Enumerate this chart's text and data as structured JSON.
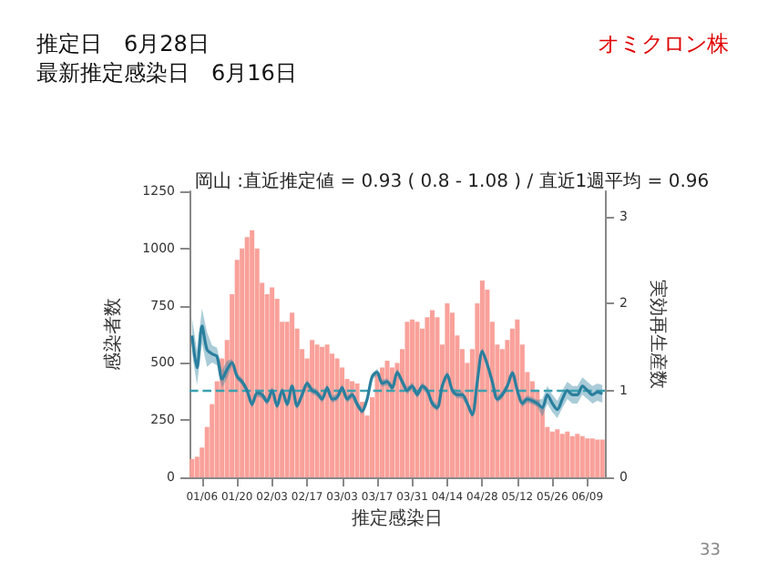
{
  "chart_data": {
    "type": "bar",
    "title": "岡山 :直近推定値 = 0.93 ( 0.8 - 1.08 ) / 直近1週平均 = 0.96",
    "annotations": [
      "推定日　6月28日",
      "最新推定感染日　6月16日",
      "オミクロン株",
      "33"
    ],
    "xlabel": "推定感染日",
    "ylabel": "感染者数",
    "y2label": "実効再生産数",
    "categories": [
      null,
      null,
      "01/06",
      null,
      null,
      null,
      null,
      null,
      null,
      "01/20",
      null,
      null,
      null,
      null,
      null,
      null,
      "02/03",
      null,
      null,
      null,
      null,
      null,
      null,
      "02/17",
      null,
      null,
      null,
      null,
      null,
      null,
      "03/03",
      null,
      null,
      null,
      null,
      null,
      null,
      "03/17",
      null,
      null,
      null,
      null,
      null,
      null,
      "03/31",
      null,
      null,
      null,
      null,
      null,
      null,
      "04/14",
      null,
      null,
      null,
      null,
      null,
      null,
      "04/28",
      null,
      null,
      null,
      null,
      null,
      null,
      "05/12",
      null,
      null,
      null,
      null,
      null,
      null,
      "05/26",
      null,
      null,
      null,
      null,
      null,
      null,
      "06/09",
      null,
      null,
      null
    ],
    "series": [
      {
        "color": "#f9a19a",
        "values": [
          80,
          90,
          130,
          220,
          320,
          420,
          520,
          600,
          800,
          950,
          1000,
          1050,
          1080,
          1000,
          850,
          800,
          830,
          780,
          680,
          680,
          720,
          650,
          560,
          520,
          600,
          580,
          570,
          580,
          540,
          520,
          480,
          430,
          420,
          410,
          330,
          270,
          350,
          450,
          480,
          510,
          480,
          500,
          560,
          680,
          690,
          680,
          650,
          700,
          730,
          700,
          580,
          760,
          720,
          620,
          560,
          500,
          560,
          760,
          860,
          820,
          680,
          580,
          560,
          600,
          650,
          690,
          580,
          460,
          420,
          380,
          300,
          220,
          200,
          210,
          190,
          200,
          180,
          190,
          180,
          170,
          170,
          165,
          165
        ]
      },
      {
        "type": "line",
        "axis": "y2",
        "color": "#2a7f9e",
        "values": [
          1.63,
          1.26,
          1.74,
          1.47,
          1.42,
          1.39,
          1.13,
          1.24,
          1.32,
          1.16,
          1.1,
          1.0,
          0.84,
          0.97,
          0.95,
          0.87,
          1.0,
          0.82,
          1.0,
          0.84,
          1.05,
          0.82,
          0.95,
          1.08,
          1.0,
          0.97,
          0.9,
          1.03,
          0.9,
          0.92,
          1.03,
          0.9,
          0.95,
          0.84,
          0.76,
          0.9,
          1.16,
          1.21,
          1.08,
          1.1,
          1.03,
          1.21,
          1.1,
          1.0,
          1.05,
          0.95,
          1.05,
          1.0,
          0.85,
          0.8,
          1.05,
          1.18,
          1.0,
          0.95,
          0.95,
          0.85,
          0.72,
          1.1,
          1.45,
          1.3,
          1.1,
          0.9,
          0.95,
          1.05,
          1.2,
          1.0,
          0.85,
          0.9,
          0.88,
          0.85,
          0.8,
          0.95,
          0.85,
          0.78,
          0.9,
          1.0,
          0.95,
          0.95,
          1.05,
          1.0,
          0.95,
          0.98,
          0.96
        ],
        "lower": [
          1.43,
          1.06,
          1.54,
          1.27,
          1.32,
          1.29,
          1.03,
          1.14,
          1.28,
          1.12,
          1.06,
          0.96,
          0.8,
          0.93,
          0.91,
          0.83,
          0.96,
          0.78,
          0.96,
          0.8,
          1.01,
          0.78,
          0.91,
          1.04,
          0.96,
          0.93,
          0.86,
          0.99,
          0.86,
          0.88,
          0.99,
          0.86,
          0.91,
          0.8,
          0.72,
          0.86,
          1.12,
          1.17,
          1.04,
          1.06,
          0.99,
          1.17,
          1.06,
          0.96,
          1.01,
          0.91,
          1.01,
          0.96,
          0.81,
          0.76,
          1.01,
          1.14,
          0.96,
          0.91,
          0.91,
          0.81,
          0.68,
          1.06,
          1.41,
          1.26,
          1.06,
          0.86,
          0.91,
          1.01,
          1.16,
          0.96,
          0.81,
          0.86,
          0.84,
          0.81,
          0.7,
          0.85,
          0.75,
          0.68,
          0.8,
          0.9,
          0.85,
          0.85,
          0.95,
          0.9,
          0.85,
          0.88,
          0.86
        ],
        "upper": [
          1.83,
          1.46,
          1.94,
          1.67,
          1.52,
          1.49,
          1.23,
          1.34,
          1.36,
          1.2,
          1.14,
          1.04,
          0.88,
          1.01,
          0.99,
          0.91,
          1.04,
          0.86,
          1.04,
          0.88,
          1.09,
          0.86,
          0.99,
          1.12,
          1.04,
          1.01,
          0.94,
          1.07,
          0.94,
          0.96,
          1.07,
          0.94,
          0.99,
          0.88,
          0.8,
          0.94,
          1.2,
          1.25,
          1.12,
          1.14,
          1.07,
          1.25,
          1.14,
          1.04,
          1.09,
          0.99,
          1.09,
          1.04,
          0.89,
          0.84,
          1.09,
          1.22,
          1.04,
          0.99,
          0.99,
          0.89,
          0.76,
          1.14,
          1.49,
          1.34,
          1.14,
          0.94,
          0.99,
          1.09,
          1.24,
          1.04,
          0.89,
          0.94,
          0.92,
          0.89,
          0.9,
          1.05,
          0.95,
          0.88,
          1.0,
          1.1,
          1.05,
          1.05,
          1.15,
          1.1,
          1.05,
          1.08,
          1.06
        ]
      }
    ],
    "ylim": [
      0,
      1250
    ],
    "yticks": [
      0,
      250,
      500,
      750,
      1000,
      1250
    ],
    "y2lim": [
      0,
      3.29
    ],
    "y2ticks": [
      0,
      1,
      2,
      3
    ],
    "ref_lines": [
      {
        "axis": "y2",
        "value": 1,
        "color": "#3aa0b0",
        "line_style": "dashed"
      }
    ],
    "grid": false,
    "marker": "none"
  }
}
